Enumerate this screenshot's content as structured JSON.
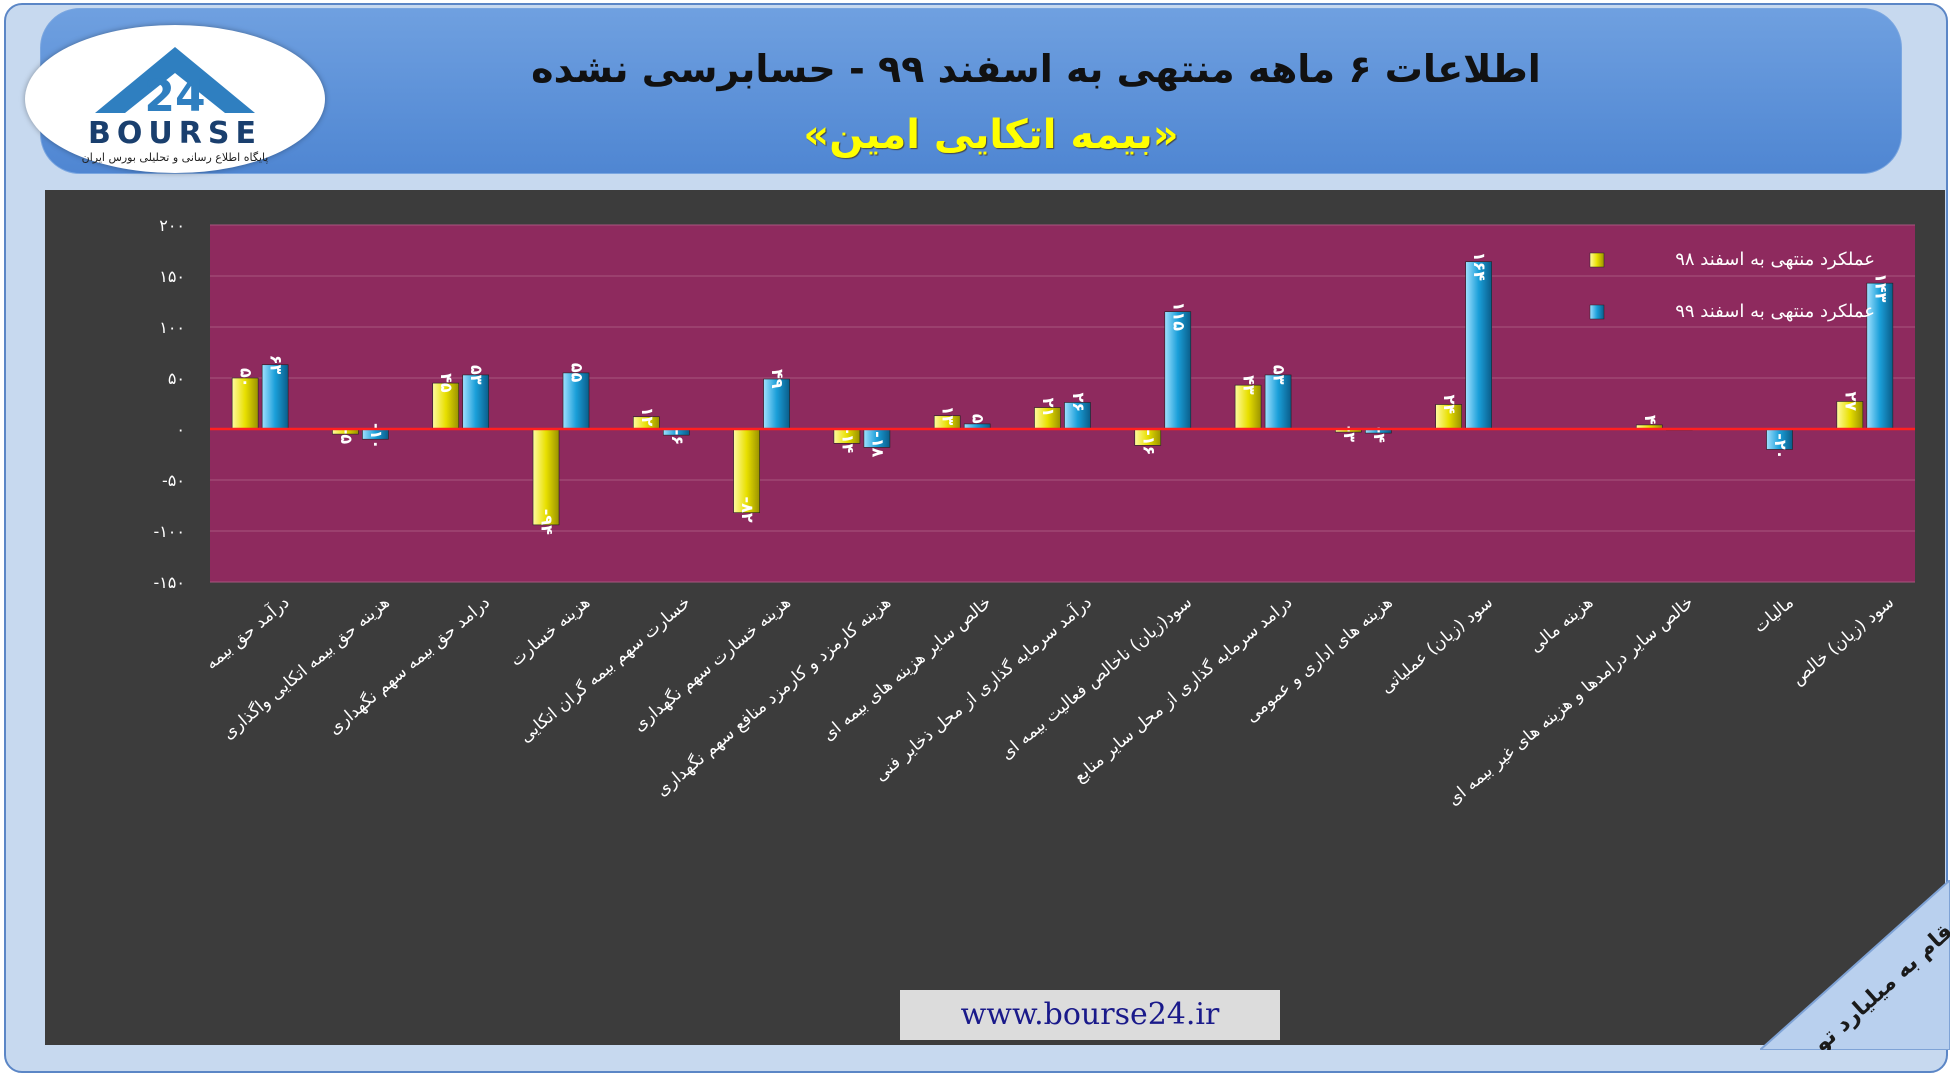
{
  "header": {
    "title": "اطلاعات ۶ ماهه منتهی به اسفند ۹۹ - حسابرسی نشده",
    "subtitle": "«بیمه اتکایی امین»"
  },
  "logo": {
    "wordmark": "BOURSE",
    "number": "24",
    "tagline": "پایگاه اطلاع رسانی و تحلیلی بورس ایران"
  },
  "footer": {
    "url": "www.bourse24.ir",
    "unit_note": "ارقام به میلیارد تومان"
  },
  "colors": {
    "series98": "#e8e000",
    "series99": "#1a9fd9",
    "plot_bg": "#8e2a5e",
    "zero_line": "#ff2020"
  },
  "chart_data": {
    "type": "bar",
    "ylim": [
      -150,
      200
    ],
    "yticks": [
      200,
      150,
      100,
      50,
      0,
      -50,
      -100,
      -150
    ],
    "ytick_labels": [
      "۲۰۰",
      "۱۵۰",
      "۱۰۰",
      "۵۰",
      "۰",
      "-۵۰",
      "-۱۰۰",
      "-۱۵۰"
    ],
    "legend_position": "top-right",
    "categories": [
      "درآمد حق بیمه",
      "هزینه حق بیمه اتکایی واگذاری",
      "درامد حق بیمه سهم نگهداری",
      "هزینه خسارت",
      "خسارت سهم بیمه گران اتکایی",
      "هزینه خسارت سهم نگهداری",
      "هزینه کارمزد و کارمزد منافع سهم نگهداری",
      "خالص سایر هزینه های بیمه ای",
      "درآمد سرمایه گذاری از محل ذخایر فنی",
      "سود(زیان) ناخالص فعالیت بیمه ای",
      "درامد سرمایه گذاری از محل سایر منابع",
      "هزینه های اداری و عمومی",
      "سود (زیان) عملیاتی",
      "هزینه مالی",
      "خالص سایر درامدها و هزینه های غیر بیمه ای",
      "مالیات",
      "سود (زیان) خالص"
    ],
    "series": [
      {
        "name": "عملکرد منتهی به اسفند ۹۸",
        "values": [
          50,
          -5,
          45,
          -94,
          12,
          -82,
          -14,
          13,
          21,
          -16,
          43,
          -3,
          24,
          null,
          4,
          null,
          27
        ],
        "labels": [
          "۵۰",
          "-۵",
          "۴۵",
          "-۹۴",
          "۱۲",
          "-۸۲",
          "-۱۴",
          "۱۳",
          "۲۱",
          "-۱۶",
          "۴۳",
          "-۳",
          "۲۴",
          "",
          "۴",
          "",
          "۲۷"
        ]
      },
      {
        "name": "عملکرد منتهی به اسفند ۹۹",
        "values": [
          63,
          -10,
          53,
          55,
          -6,
          49,
          -18,
          5,
          26,
          115,
          53,
          -4,
          164,
          null,
          0.5,
          -20,
          143
        ],
        "labels": [
          "۶۳",
          "-۱۰",
          "۵۳",
          "۵۵",
          "-۶",
          "۴۹",
          "-۱۸",
          "۵",
          "۲۶",
          "۱۱۵",
          "۵۳",
          "-۴",
          "۱۶۴",
          "",
          "",
          "-۲۰",
          "۱۴۳"
        ]
      }
    ]
  }
}
